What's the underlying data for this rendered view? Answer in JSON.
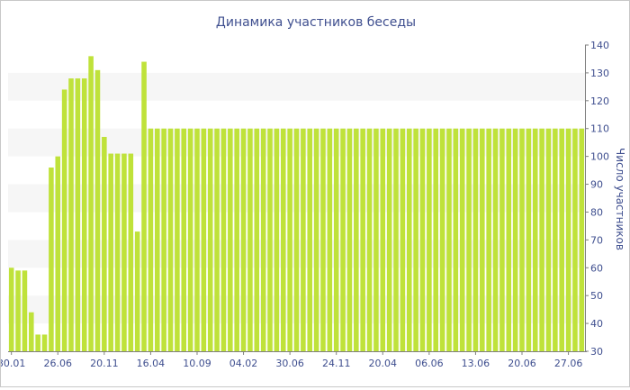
{
  "chart_data": {
    "type": "bar",
    "title": "Динамика участников беседы",
    "ylabel": "Число участников",
    "xlabel": "",
    "ylim": [
      30,
      140
    ],
    "yticks": [
      30,
      40,
      50,
      60,
      70,
      80,
      90,
      100,
      110,
      120,
      130,
      140
    ],
    "x_tick_labels": [
      "30.01",
      "26.06",
      "20.11",
      "16.04",
      "10.09",
      "04.02",
      "30.06",
      "24.11",
      "20.04",
      "06.06",
      "13.06",
      "20.06",
      "27.06"
    ],
    "x_tick_positions": [
      0,
      7,
      14,
      21,
      28,
      35,
      42,
      49,
      56,
      63,
      70,
      77,
      84
    ],
    "values": [
      60,
      59,
      59,
      44,
      36,
      36,
      96,
      100,
      124,
      128,
      128,
      128,
      136,
      131,
      107,
      101,
      101,
      101,
      101,
      73,
      134,
      110,
      110,
      110,
      110,
      110,
      110,
      110,
      110,
      110,
      110,
      110,
      110,
      110,
      110,
      110,
      110,
      110,
      110,
      110,
      110,
      110,
      110,
      110,
      110,
      110,
      110,
      110,
      110,
      110,
      110,
      110,
      110,
      110,
      110,
      110,
      110,
      110,
      110,
      110,
      110,
      110,
      110,
      110,
      110,
      110,
      110,
      110,
      110,
      110,
      110,
      110,
      110,
      110,
      110,
      110,
      110,
      110,
      110,
      110,
      110,
      110,
      110,
      110,
      110,
      110,
      110
    ],
    "bar_color": "#bfe23a",
    "band_color": "#f6f6f6",
    "text_color": "#3f4f8f",
    "axis_position": "right",
    "grid": "alternating-bands"
  }
}
